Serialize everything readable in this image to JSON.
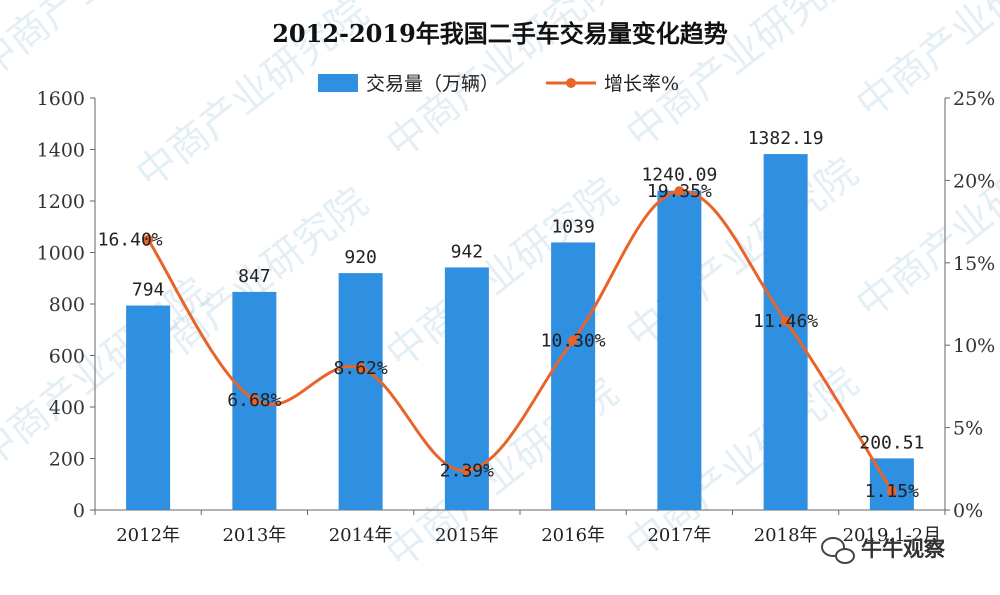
{
  "chart_data": {
    "type": "bar",
    "title": "2012-2019年我国二手车交易量变化趋势",
    "categories": [
      "2012年",
      "2013年",
      "2014年",
      "2015年",
      "2016年",
      "2017年",
      "2018年",
      "2019.1-2月"
    ],
    "series": [
      {
        "name": "交易量（万辆）",
        "type": "bar",
        "axis": "left",
        "color": "#2f8fe0",
        "values": [
          794,
          847,
          920,
          942,
          1039,
          1240.09,
          1382.19,
          200.51
        ],
        "labels": [
          "794",
          "847",
          "920",
          "942",
          "1039",
          "1240.09",
          "1382.19",
          "200.51"
        ]
      },
      {
        "name": "增长率%",
        "type": "line",
        "axis": "right",
        "color": "#e8642a",
        "values": [
          16.4,
          6.68,
          8.62,
          2.39,
          10.3,
          19.35,
          11.46,
          1.15
        ],
        "labels": [
          "16.40%",
          "6.68%",
          "8.62%",
          "2.39%",
          "10.30%",
          "19.35%",
          "11.46%",
          "1.15%"
        ]
      }
    ],
    "y_left": {
      "min": 0,
      "max": 1600,
      "ticks": [
        "0",
        "200",
        "400",
        "600",
        "800",
        "1000",
        "1200",
        "1400",
        "1600"
      ]
    },
    "y_right": {
      "min": 0,
      "max": 25,
      "ticks": [
        "0%",
        "5%",
        "10%",
        "15%",
        "20%",
        "25%"
      ]
    },
    "legend_position": "top-center",
    "grid": false
  },
  "watermark": {
    "text": "中商产业研究院"
  },
  "brand": {
    "text": "牛牛观察",
    "icon": "wechat-icon"
  }
}
